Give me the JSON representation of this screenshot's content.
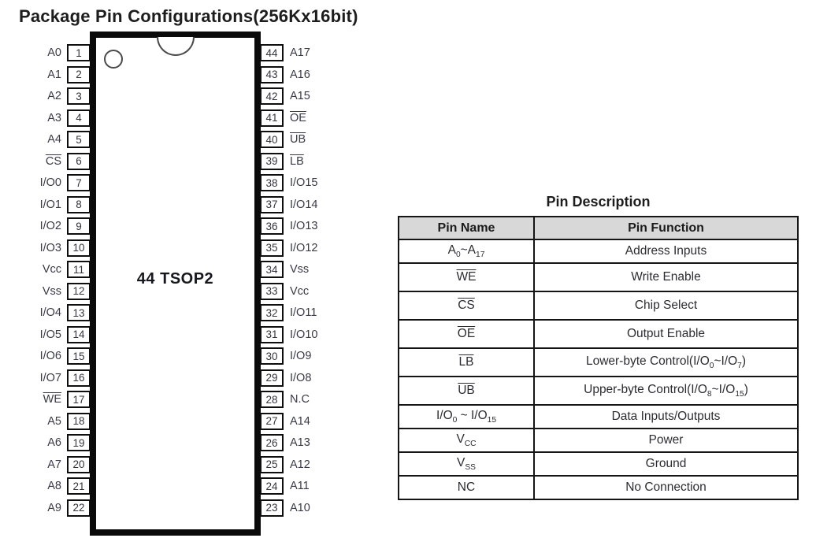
{
  "title": "Package Pin Configurations(256Kx16bit)",
  "colors": {
    "table_header_bg": "#d8d8d8",
    "chip_border": "#0a0a0a",
    "pin_text": "#3a3a46"
  },
  "chip": {
    "label": "44 TSOP2",
    "left_pins": [
      {
        "name": "A0",
        "num": "1"
      },
      {
        "name": "A1",
        "num": "2"
      },
      {
        "name": "A2",
        "num": "3"
      },
      {
        "name": "A3",
        "num": "4"
      },
      {
        "name": "A4",
        "num": "5"
      },
      {
        "name": "CS",
        "num": "6",
        "ov": true
      },
      {
        "name": "I/O0",
        "num": "7"
      },
      {
        "name": "I/O1",
        "num": "8"
      },
      {
        "name": "I/O2",
        "num": "9"
      },
      {
        "name": "I/O3",
        "num": "10"
      },
      {
        "name": "Vcc",
        "num": "11"
      },
      {
        "name": "Vss",
        "num": "12"
      },
      {
        "name": "I/O4",
        "num": "13"
      },
      {
        "name": "I/O5",
        "num": "14"
      },
      {
        "name": "I/O6",
        "num": "15"
      },
      {
        "name": "I/O7",
        "num": "16"
      },
      {
        "name": "WE",
        "num": "17",
        "ov": true
      },
      {
        "name": "A5",
        "num": "18"
      },
      {
        "name": "A6",
        "num": "19"
      },
      {
        "name": "A7",
        "num": "20"
      },
      {
        "name": "A8",
        "num": "21"
      },
      {
        "name": "A9",
        "num": "22"
      }
    ],
    "right_pins": [
      {
        "num": "44",
        "name": "A17"
      },
      {
        "num": "43",
        "name": "A16"
      },
      {
        "num": "42",
        "name": "A15"
      },
      {
        "num": "41",
        "name": "OE",
        "ov": true
      },
      {
        "num": "40",
        "name": "UB",
        "ov": true
      },
      {
        "num": "39",
        "name": "LB",
        "ov": true
      },
      {
        "num": "38",
        "name": "I/O15"
      },
      {
        "num": "37",
        "name": "I/O14"
      },
      {
        "num": "36",
        "name": "I/O13"
      },
      {
        "num": "35",
        "name": "I/O12"
      },
      {
        "num": "34",
        "name": "Vss"
      },
      {
        "num": "33",
        "name": "Vcc"
      },
      {
        "num": "32",
        "name": "I/O11"
      },
      {
        "num": "31",
        "name": "I/O10"
      },
      {
        "num": "30",
        "name": "I/O9"
      },
      {
        "num": "29",
        "name": "I/O8"
      },
      {
        "num": "28",
        "name": "N.C"
      },
      {
        "num": "27",
        "name": "A14"
      },
      {
        "num": "26",
        "name": "A13"
      },
      {
        "num": "25",
        "name": "A12"
      },
      {
        "num": "24",
        "name": "A11"
      },
      {
        "num": "23",
        "name": "A10"
      }
    ]
  },
  "table": {
    "title": "Pin Description",
    "headers": [
      "Pin Name",
      "Pin Function"
    ],
    "rows": [
      {
        "name": [
          {
            "t": "A"
          },
          {
            "s": "0"
          },
          {
            "t": "~A"
          },
          {
            "s": "17"
          }
        ],
        "func": [
          {
            "t": "Address Inputs"
          }
        ]
      },
      {
        "name": [
          {
            "t": "WE",
            "ov": true
          }
        ],
        "func": [
          {
            "t": "Write Enable"
          }
        ],
        "tall": true
      },
      {
        "name": [
          {
            "t": "CS",
            "ov": true
          }
        ],
        "func": [
          {
            "t": "Chip Select"
          }
        ],
        "tall": true
      },
      {
        "name": [
          {
            "t": "OE",
            "ov": true
          }
        ],
        "func": [
          {
            "t": "Output Enable"
          }
        ],
        "tall": true
      },
      {
        "name": [
          {
            "t": "LB",
            "ov": true
          }
        ],
        "func": [
          {
            "t": "Lower-byte Control(I/O"
          },
          {
            "s": "0"
          },
          {
            "t": "~I/O"
          },
          {
            "s": "7"
          },
          {
            "t": ")"
          }
        ],
        "tall": true
      },
      {
        "name": [
          {
            "t": "UB",
            "ov": true
          }
        ],
        "func": [
          {
            "t": "Upper-byte Control(I/O"
          },
          {
            "s": "8"
          },
          {
            "t": "~I/O"
          },
          {
            "s": "15"
          },
          {
            "t": ")"
          }
        ],
        "tall": true
      },
      {
        "name": [
          {
            "t": "I/O"
          },
          {
            "s": "0"
          },
          {
            "t": " ~ I/O"
          },
          {
            "s": "15"
          }
        ],
        "func": [
          {
            "t": "Data Inputs/Outputs"
          }
        ]
      },
      {
        "name": [
          {
            "t": "V"
          },
          {
            "s": "CC"
          }
        ],
        "func": [
          {
            "t": "Power"
          }
        ]
      },
      {
        "name": [
          {
            "t": "V"
          },
          {
            "s": "SS"
          }
        ],
        "func": [
          {
            "t": "Ground"
          }
        ]
      },
      {
        "name": [
          {
            "t": "NC"
          }
        ],
        "func": [
          {
            "t": "No Connection"
          }
        ]
      }
    ]
  }
}
